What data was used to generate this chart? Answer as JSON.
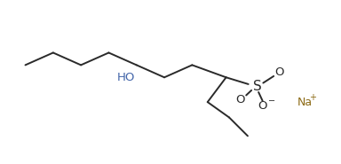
{
  "bg_color": "#ffffff",
  "line_color": "#2a2a2a",
  "line_width": 1.4,
  "text_color": "#2a2a2a",
  "ho_color": "#4466aa",
  "na_color": "#8B6914",
  "s_fontsize": 11,
  "label_fontsize": 9.5,
  "na_fontsize": 9,
  "xlim": [
    -0.5,
    10.5
  ],
  "ylim": [
    0.2,
    4.5
  ],
  "figw": 3.84,
  "figh": 1.85,
  "dpi": 100
}
